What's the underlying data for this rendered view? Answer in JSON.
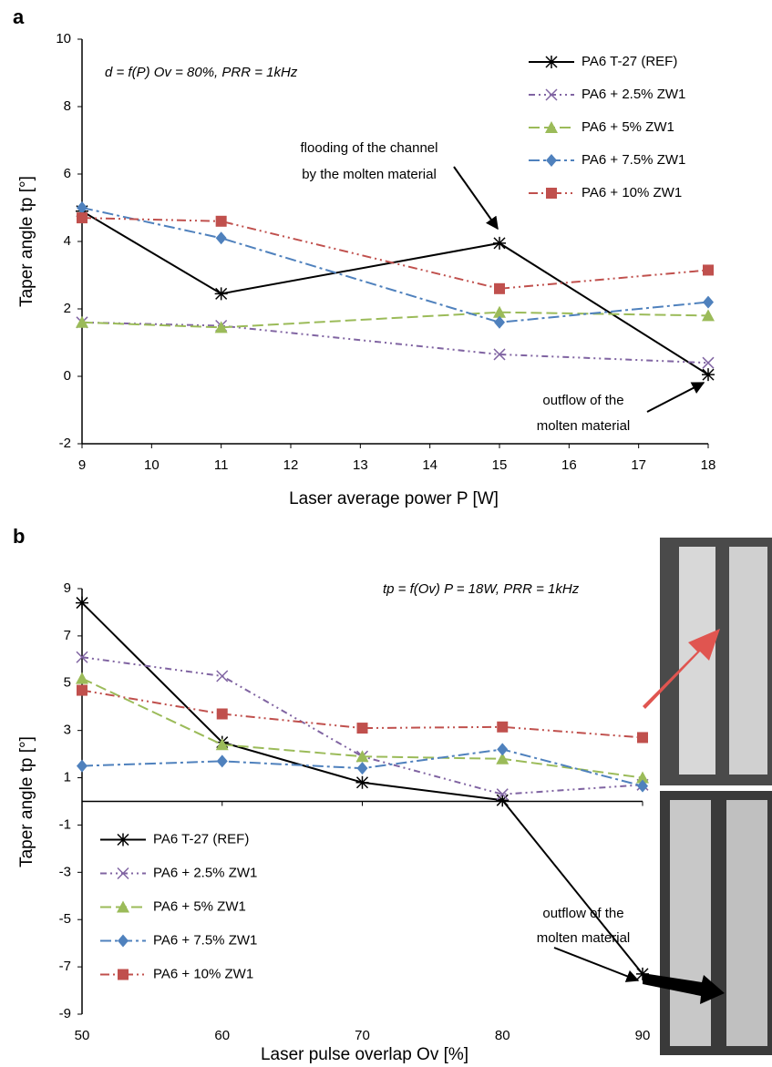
{
  "chart_data": [
    {
      "type": "line",
      "panel_label": "a",
      "subtitle": "d = f(P) Ov = 80%, PRR = 1kHz",
      "x_label": "Laser average power  P [W]",
      "y_label": "Taper angle  tp [°]",
      "x": [
        9,
        11,
        15,
        18
      ],
      "xlim": [
        9,
        18
      ],
      "xticks": [
        9,
        10,
        11,
        12,
        13,
        14,
        15,
        16,
        17,
        18
      ],
      "ylim": [
        -2,
        10
      ],
      "yticks": [
        -2,
        0,
        2,
        4,
        6,
        8,
        10
      ],
      "legend": "upper right",
      "annotations": [
        [
          "flooding of the channel",
          "by the molten material"
        ],
        [
          "outflow of the",
          "molten material"
        ]
      ],
      "series": [
        {
          "name": "PA6 T-27  (REF)",
          "color": "#000000",
          "marker": "star",
          "dash": "none",
          "values": [
            4.9,
            2.45,
            3.95,
            0.05
          ]
        },
        {
          "name": "PA6 + 2.5% ZW1",
          "color": "#8064a2",
          "marker": "x",
          "dash": "7 4 2 4 2 4",
          "values": [
            1.6,
            1.5,
            0.65,
            0.4
          ]
        },
        {
          "name": "PA6 + 5% ZW1",
          "color": "#9bbb59",
          "marker": "triangle",
          "dash": "12 5",
          "values": [
            1.6,
            1.45,
            1.9,
            1.8
          ]
        },
        {
          "name": "PA6 + 7.5% ZW1",
          "color": "#4f81bd",
          "marker": "diamond",
          "dash": "12 4 3 4",
          "values": [
            5.0,
            4.1,
            1.6,
            2.2
          ]
        },
        {
          "name": "PA6 + 10% ZW1",
          "color": "#c0504d",
          "marker": "square",
          "dash": "10 4 2 4 2 4",
          "values": [
            4.7,
            4.6,
            2.6,
            3.15
          ]
        }
      ]
    },
    {
      "type": "line",
      "panel_label": "b",
      "subtitle": "tp = f(Ov) P = 18W, PRR = 1kHz",
      "x_label": "Laser pulse overlap  Ov [%]",
      "y_label": "Taper angle  tp [°]",
      "x": [
        50,
        60,
        70,
        80,
        90
      ],
      "xlim": [
        50,
        90
      ],
      "xticks": [
        50,
        60,
        70,
        80,
        90
      ],
      "ylim": [
        -9,
        9
      ],
      "yticks": [
        -9,
        -7,
        -5,
        -3,
        -1,
        1,
        3,
        5,
        7,
        9
      ],
      "legend": "lower left",
      "annotations": [
        [
          "outflow of the",
          "molten material"
        ]
      ],
      "series": [
        {
          "name": "PA6 T-27  (REF)",
          "color": "#000000",
          "marker": "star",
          "dash": "none",
          "values": [
            8.4,
            2.5,
            0.8,
            0.05,
            -7.3
          ]
        },
        {
          "name": "PA6 + 2.5% ZW1",
          "color": "#8064a2",
          "marker": "x",
          "dash": "7 4 2 4 2 4",
          "values": [
            6.1,
            5.3,
            1.9,
            0.3,
            0.7
          ]
        },
        {
          "name": "PA6 + 5% ZW1",
          "color": "#9bbb59",
          "marker": "triangle",
          "dash": "12 5",
          "values": [
            5.2,
            2.4,
            1.9,
            1.8,
            1.0
          ]
        },
        {
          "name": "PA6 + 7.5% ZW1",
          "color": "#4f81bd",
          "marker": "diamond",
          "dash": "12 4 3 4",
          "values": [
            1.5,
            1.7,
            1.4,
            2.2,
            0.65
          ]
        },
        {
          "name": "PA6 + 10% ZW1",
          "color": "#c0504d",
          "marker": "square",
          "dash": "10 4 2 4 2 4",
          "values": [
            4.7,
            3.7,
            3.1,
            3.15,
            2.7
          ]
        }
      ]
    }
  ]
}
